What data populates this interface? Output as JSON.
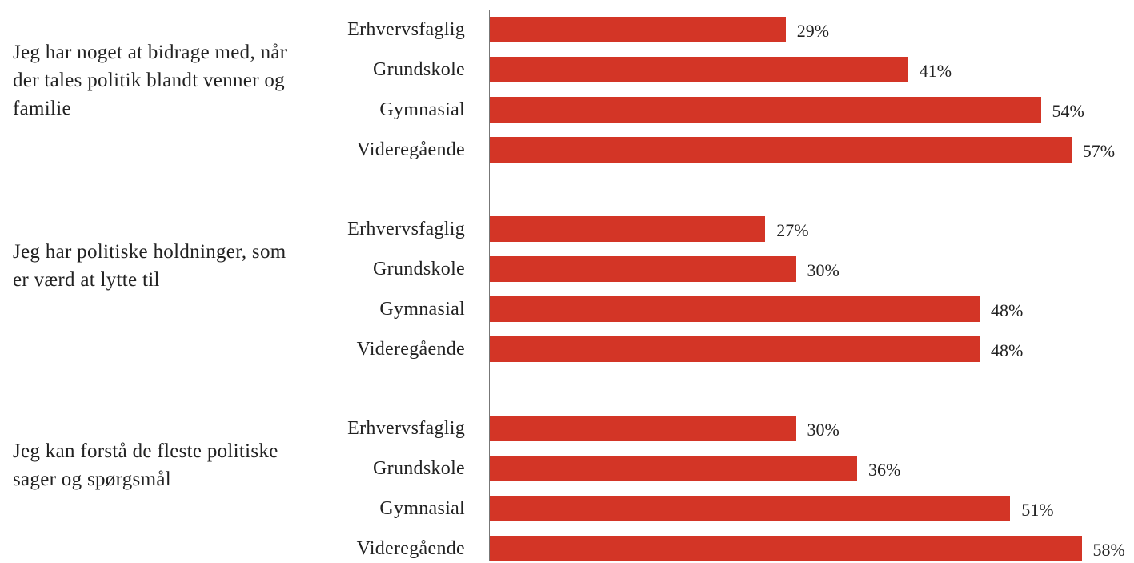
{
  "chart_data": {
    "type": "bar",
    "orientation": "horizontal",
    "color": "#d33526",
    "groups": [
      {
        "name": "Jeg har noget at bidrage med, når der tales politik blandt venner og familie",
        "categories": [
          "Erhvervsfaglig",
          "Grundskole",
          "Gymnasial",
          "Videregående"
        ],
        "values": [
          29,
          41,
          54,
          57
        ],
        "value_labels": [
          "29%",
          "41%",
          "54%",
          "57%"
        ]
      },
      {
        "name": "Jeg har politiske holdninger, som er værd at lytte til",
        "categories": [
          "Erhvervsfaglig",
          "Grundskole",
          "Gymnasial",
          "Videregående"
        ],
        "values": [
          27,
          30,
          48,
          48
        ],
        "value_labels": [
          "27%",
          "30%",
          "48%",
          "48%"
        ]
      },
      {
        "name": "Jeg kan forstå de fleste politiske sager og spørgsmål",
        "categories": [
          "Erhvervsfaglig",
          "Grundskole",
          "Gymnasial",
          "Videregående"
        ],
        "values": [
          30,
          36,
          51,
          58
        ],
        "value_labels": [
          "30%",
          "36%",
          "51%",
          "58%"
        ]
      }
    ]
  }
}
